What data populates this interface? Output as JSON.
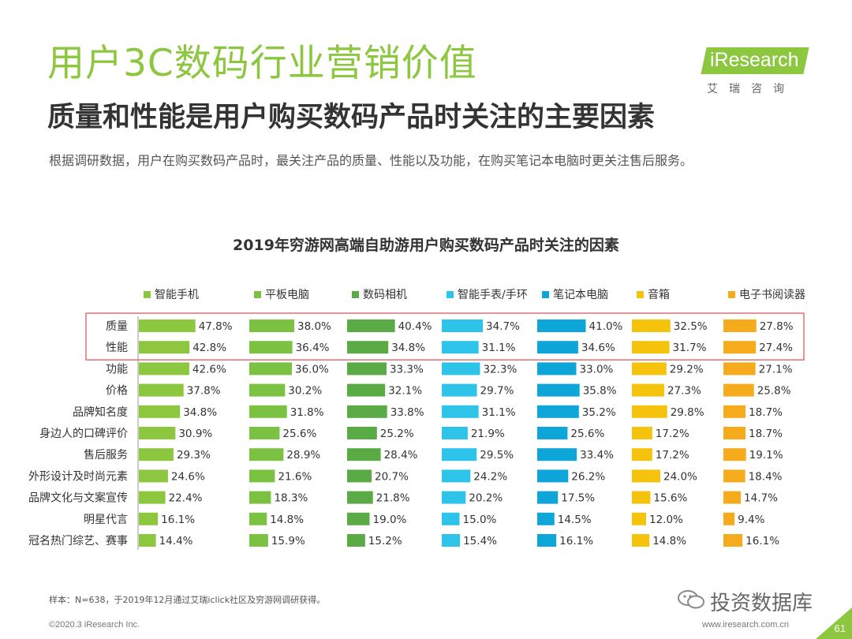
{
  "header": {
    "title": "用户3C数码行业营销价值",
    "subtitle": "质量和性能是用户购买数码产品时关注的主要因素",
    "description": "根据调研数据，用户在购买数码产品时，最关注产品的质量、性能以及功能，在购买笔记本电脑时更关注售后服务。"
  },
  "logo": {
    "text": "iResearch",
    "cn": "艾瑞咨询"
  },
  "colors": {
    "title_green": "#8dc63f",
    "highlight_box": "#e07070",
    "series": [
      "#8dc63f",
      "#7cc242",
      "#5aaa46",
      "#2ec4ea",
      "#0ea5d9",
      "#f5c30b",
      "#f5ab1c"
    ]
  },
  "chart_data": {
    "type": "bar",
    "title": "2019年穷游网高端自助游用户购买数码产品时关注的因素",
    "categories": [
      "质量",
      "性能",
      "功能",
      "价格",
      "品牌知名度",
      "身边人的口碑评价",
      "售后服务",
      "外形设计及时尚元素",
      "品牌文化与文案宣传",
      "明星代言",
      "冠名热门综艺、赛事"
    ],
    "highlighted_categories": [
      "质量",
      "性能"
    ],
    "series": [
      {
        "name": "智能手机",
        "values": [
          47.8,
          42.8,
          42.6,
          37.8,
          34.8,
          30.9,
          29.3,
          24.6,
          22.4,
          16.1,
          14.4
        ]
      },
      {
        "name": "平板电脑",
        "values": [
          38.0,
          36.4,
          36.0,
          30.2,
          31.8,
          25.6,
          28.9,
          21.6,
          18.3,
          14.8,
          15.9
        ]
      },
      {
        "name": "数码相机",
        "values": [
          40.4,
          34.8,
          33.3,
          32.1,
          33.8,
          25.2,
          28.4,
          20.7,
          21.8,
          19.0,
          15.2
        ]
      },
      {
        "name": "智能手表/手环",
        "values": [
          34.7,
          31.1,
          32.3,
          29.7,
          31.1,
          21.9,
          29.5,
          24.2,
          20.2,
          15.0,
          15.4
        ]
      },
      {
        "name": "笔记本电脑",
        "values": [
          41.0,
          34.6,
          33.0,
          35.8,
          35.2,
          25.6,
          33.4,
          26.2,
          17.5,
          14.5,
          16.1
        ]
      },
      {
        "name": "音箱",
        "values": [
          32.5,
          31.7,
          29.2,
          27.3,
          29.8,
          17.2,
          17.2,
          24.0,
          15.6,
          12.0,
          14.8
        ]
      },
      {
        "name": "电子书阅读器",
        "values": [
          27.8,
          27.4,
          27.1,
          25.8,
          18.7,
          18.7,
          19.1,
          18.4,
          14.7,
          9.4,
          16.1
        ]
      }
    ],
    "value_format": "percent_1dp"
  },
  "footer": {
    "note": "样本：N=638，于2019年12月通过艾瑞iclick社区及穷游网调研获得。",
    "copyright": "©2020.3 iResearch Inc.",
    "site": "www.iresearch.com.cn",
    "page": "61",
    "watermark": "投资数据库"
  }
}
